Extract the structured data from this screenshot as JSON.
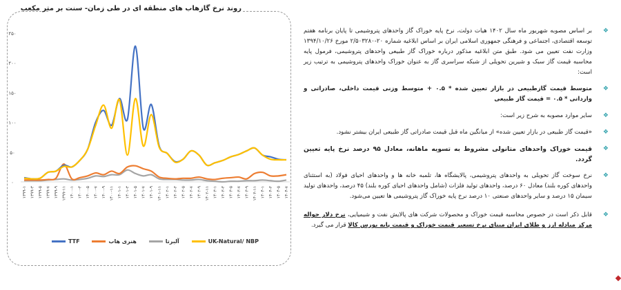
{
  "chart_data": {
    "type": "line",
    "title": "روند نرخ گازهاب های منطقه ای در طی زمان- سنت بر متر مکعب",
    "xlabel": "",
    "ylabel": "",
    "ylim": [
      0,
      250
    ],
    "yticks": [
      "۰",
      "۵۰",
      "۱۰۰",
      "۱۵۰",
      "۲۰۰",
      "۲۵۰"
    ],
    "ytick_values": [
      0,
      50,
      100,
      150,
      200,
      250
    ],
    "grid": false,
    "legend": "bottom",
    "categories": [
      "۱۳۹۹-۱",
      "۱۳۹۹-۳",
      "۱۳۹۹-۵",
      "۱۳۹۹-۷",
      "۱۳۹۹-۹",
      "۱۳۹۹-۱۱",
      "۱۴۰۰-۱",
      "۱۴۰۰-۳",
      "۱۴۰۰-۵",
      "۱۴۰۰-۷",
      "۱۴۰۰-۹",
      "۱۴۰۰-۱۱",
      "۱۴۰۱-۱",
      "۱۴۰۱-۳",
      "۱۴۰۱-۵",
      "۱۴۰۱-۷",
      "۱۴۰۱-۹",
      "۱۴۰۱-۱۱",
      "۱۴۰۲-۱",
      "۱۴۰۲-۳",
      "۱۴۰۲-۵",
      "۱۴۰۲-۷",
      "۱۴۰۲-۹",
      "۱۴۰۲-۱۱",
      "۱۴۰۳-۱",
      "۱۴۰۳-۳",
      "۱۴۰۳-۵",
      "۱۴۰۳-۷",
      "۱۴۰۳-۹",
      "۱۴۰۳-۱۱",
      "۱۴۰۴-۱",
      "۱۴۰۴-۳",
      "۱۴۰۴-۵",
      "۱۴۰۴-۷"
    ],
    "series": [
      {
        "name": "TTF",
        "color": "#4472c4",
        "values": [
          7,
          5,
          6,
          16,
          18,
          28,
          25,
          36,
          55,
          100,
          120,
          95,
          140,
          105,
          228,
          90,
          130,
          60,
          48,
          34,
          38,
          52,
          45,
          28,
          32,
          36,
          42,
          46,
          52,
          57,
          45,
          42,
          38,
          37
        ]
      },
      {
        "name": "هنری هاب",
        "color": "#ed7d31",
        "values": [
          3,
          3,
          3,
          4,
          6,
          30,
          5,
          7,
          10,
          15,
          12,
          18,
          14,
          25,
          27,
          22,
          18,
          8,
          6,
          5,
          6,
          6,
          8,
          5,
          4,
          6,
          7,
          8,
          5,
          14,
          16,
          10,
          10,
          12
        ]
      },
      {
        "name": "آلبرتا",
        "color": "#a5a5a5",
        "values": [
          2,
          2,
          2,
          3,
          4,
          5,
          3,
          4,
          6,
          10,
          9,
          12,
          12,
          20,
          14,
          10,
          12,
          5,
          4,
          4,
          3,
          3,
          4,
          2,
          1,
          0,
          1,
          1,
          2,
          2,
          3,
          2,
          1,
          3
        ]
      },
      {
        "name": "UK-Natural/ NBP",
        "color": "#ffc000",
        "values": [
          6,
          5,
          6,
          16,
          18,
          26,
          25,
          36,
          55,
          95,
          129,
          90,
          138,
          45,
          140,
          60,
          113,
          58,
          48,
          33,
          38,
          52,
          45,
          28,
          32,
          36,
          42,
          46,
          52,
          57,
          45,
          38,
          37,
          37
        ]
      }
    ]
  },
  "text": {
    "paragraphs": [
      {
        "text": "بر اساس مصوبه شهریور ماه سال ۱۴۰۲ هیات دولت، نرخ پایه خوراک گاز واحدهای پتروشیمی تا پایان برنامه هفتم توسعه اقتصادی، اجتماعی و فرهنگی جمهوری اسلامی ایران بر اساس ابلاغیه شماره ۲۰-۲/۵۰۳۲۸۰ مورخ ۱۳۹۴/۱۰/۲۶ وزارت نفت تعیین می شود. طبق متن ابلاغیه مذکور درباره خوراک گاز طبیعی واحدهای پتروشیمی، فرمول پایه محاسبه قیمت گاز سبک و شیرین تحویلی از شبکه سراسری گاز به عنوان خوراک واحدهای پتروشیمی به ترتیب زیر است:"
      },
      {
        "text": "متوسط قیمت گازطبیعی در بازار تعیین شده * ۰.۵ + متوسط وزنی قیمت داخلی، صادراتی و وارداتی * ۰.۵ = قیمت گاز طبیعی"
      },
      {
        "text": "سایر موارد مصوبه به شرح زیر است:"
      },
      {
        "text": "«قیمت گاز طبیعی در بازار تعیین شده» از میانگین ماه قبل قیمت صادراتی گاز طبیعی ایران بیشتر نشود."
      },
      {
        "text": "قیمت خوراک واحدهای متانولی مشروط به تسویه ماهانه، معادل ۹۵ درصد نرخ پایه تعیین گردد."
      },
      {
        "text": "نرخ سوخت گاز تحویلی به واحدهای پتروشیمی، پالایشگاه ها، تلمبه خانه ها و واحدهای احیای فولاد (به استثنای واحدهای کوره بلند) معادل ۶۰ درصد، واحدهای تولید فلزات (شامل واحدهای احیای کوره بلند) ۴۵ درصد، واحدهای تولید سیمان ۱۵ درصد و سایر واحدهای صنعتی ۱۰ درصد نرخ پایه خوراک گاز پتروشیمی ها تعیین می‌شود."
      },
      {
        "text": "قابل ذکر است در خصوص محاسبه قیمت خوراک و محصولات شرکت های پالایش نفت و شیمیایی، ",
        "underlined": "نرخ دلار حواله مرکز مبادله ارز و طلای ایران مبنای نرخ تسعیر قیمت خوراک و قیمت پایه بورس کالا",
        "tail": " قرار می گیرد."
      }
    ],
    "bullet_color": "#3aa6b0"
  }
}
